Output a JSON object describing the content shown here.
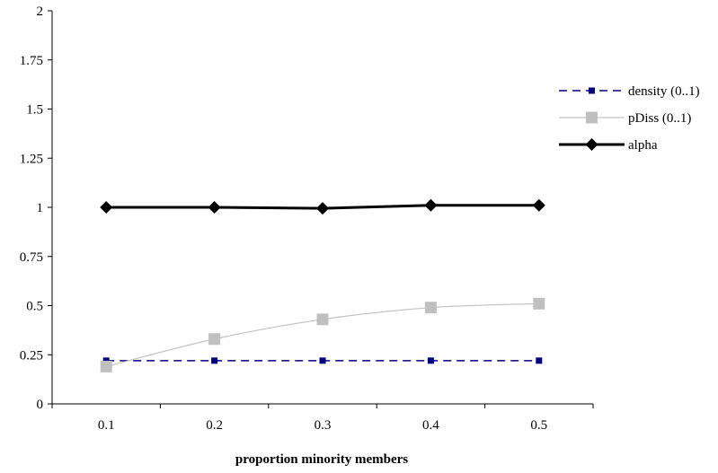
{
  "chart_data": {
    "type": "line",
    "title": "",
    "xlabel": "proportion minority members",
    "ylabel": "",
    "categories": [
      "0.1",
      "0.2",
      "0.3",
      "0.4",
      "0.5"
    ],
    "yticks": [
      "0",
      "0.25",
      "0.5",
      "0.75",
      "1",
      "1.25",
      "1.5",
      "1.75",
      "2"
    ],
    "ylim": [
      0,
      2
    ],
    "grid": false,
    "legend_position": "right",
    "series": [
      {
        "name": "density (0..1)",
        "values": [
          0.22,
          0.22,
          0.22,
          0.22,
          0.22
        ],
        "color": "#000080",
        "line_style": "dashed",
        "marker": "square-small"
      },
      {
        "name": "pDiss (0..1)",
        "values": [
          0.19,
          0.33,
          0.43,
          0.49,
          0.51
        ],
        "color": "#c0c0c0",
        "line_style": "solid-thin",
        "marker": "square"
      },
      {
        "name": "alpha",
        "values": [
          1.0,
          1.0,
          0.995,
          1.01,
          1.01
        ],
        "color": "#000000",
        "line_style": "solid-thick",
        "marker": "diamond"
      }
    ]
  }
}
